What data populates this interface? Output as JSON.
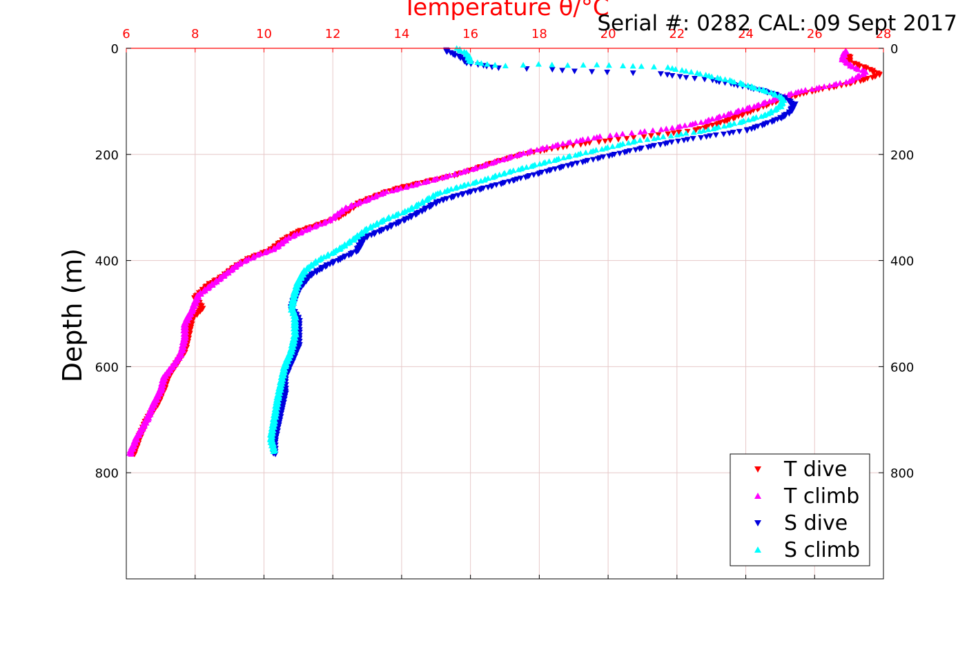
{
  "chart_data": {
    "type": "scatter",
    "title": "Temperature θ/°C",
    "annotation": "Serial #: 0282  CAL: 09 Sept 2017",
    "xlabel": "Temperature θ/°C",
    "ylabel": "Depth (m)",
    "xlim": [
      6,
      28
    ],
    "ylim": [
      0,
      1000
    ],
    "y_reversed": true,
    "grid": true,
    "legend_position": "bottom-right",
    "x_ticks": [
      "6",
      "8",
      "10",
      "12",
      "14",
      "16",
      "18",
      "20",
      "22",
      "24",
      "26",
      "28"
    ],
    "y_ticks": [
      "0",
      "200",
      "400",
      "600",
      "800"
    ],
    "colors": {
      "axis_top": "#ff0000",
      "grid": "#e6c8c8",
      "T dive": "#ff0000",
      "T climb": "#ff00ff",
      "S dive": "#0000dd",
      "S climb": "#00ffff"
    },
    "series": [
      {
        "name": "T dive",
        "marker": "triangle-down",
        "color": "#ff0000",
        "points": [
          [
            27.0,
            15
          ],
          [
            27.0,
            25
          ],
          [
            27.6,
            40
          ],
          [
            27.9,
            50
          ],
          [
            27.4,
            60
          ],
          [
            26.8,
            70
          ],
          [
            26.0,
            80
          ],
          [
            25.6,
            87
          ],
          [
            25.1,
            95
          ],
          [
            24.7,
            105
          ],
          [
            24.1,
            120
          ],
          [
            23.3,
            140
          ],
          [
            22.5,
            155
          ],
          [
            21.5,
            163
          ],
          [
            20.5,
            170
          ],
          [
            19.5,
            178
          ],
          [
            18.5,
            188
          ],
          [
            17.5,
            200
          ],
          [
            16.7,
            215
          ],
          [
            16.0,
            230
          ],
          [
            15.5,
            240
          ],
          [
            14.8,
            250
          ],
          [
            14.0,
            262
          ],
          [
            13.5,
            272
          ],
          [
            12.8,
            290
          ],
          [
            12.2,
            318
          ],
          [
            11.7,
            330
          ],
          [
            11.0,
            345
          ],
          [
            10.6,
            360
          ],
          [
            10.2,
            380
          ],
          [
            9.6,
            395
          ],
          [
            9.2,
            410
          ],
          [
            8.8,
            430
          ],
          [
            8.4,
            445
          ],
          [
            8.0,
            470
          ],
          [
            8.2,
            490
          ],
          [
            7.9,
            510
          ],
          [
            7.8,
            540
          ],
          [
            7.7,
            570
          ],
          [
            7.5,
            590
          ],
          [
            7.2,
            620
          ],
          [
            7.1,
            640
          ],
          [
            6.9,
            670
          ],
          [
            6.6,
            700
          ],
          [
            6.4,
            730
          ],
          [
            6.2,
            765
          ]
        ]
      },
      {
        "name": "T climb",
        "marker": "triangle-up",
        "color": "#ff00ff",
        "points": [
          [
            26.9,
            5
          ],
          [
            26.8,
            20
          ],
          [
            27.1,
            35
          ],
          [
            27.5,
            45
          ],
          [
            27.0,
            62
          ],
          [
            26.3,
            72
          ],
          [
            25.5,
            82
          ],
          [
            24.9,
            95
          ],
          [
            24.3,
            108
          ],
          [
            23.6,
            122
          ],
          [
            22.8,
            138
          ],
          [
            21.9,
            150
          ],
          [
            20.9,
            158
          ],
          [
            19.8,
            166
          ],
          [
            18.8,
            178
          ],
          [
            17.8,
            193
          ],
          [
            16.9,
            210
          ],
          [
            16.2,
            225
          ],
          [
            15.5,
            238
          ],
          [
            14.8,
            250
          ],
          [
            14.1,
            262
          ],
          [
            13.5,
            272
          ],
          [
            12.9,
            288
          ],
          [
            12.4,
            300
          ],
          [
            11.9,
            325
          ],
          [
            11.3,
            340
          ],
          [
            10.7,
            358
          ],
          [
            10.3,
            378
          ],
          [
            9.8,
            390
          ],
          [
            9.3,
            405
          ],
          [
            8.9,
            425
          ],
          [
            8.5,
            445
          ],
          [
            8.1,
            465
          ],
          [
            7.9,
            495
          ],
          [
            7.7,
            520
          ],
          [
            7.7,
            545
          ],
          [
            7.6,
            575
          ],
          [
            7.4,
            595
          ],
          [
            7.1,
            620
          ],
          [
            7.0,
            645
          ],
          [
            6.8,
            670
          ],
          [
            6.6,
            700
          ],
          [
            6.3,
            735
          ],
          [
            6.1,
            765
          ]
        ]
      },
      {
        "name": "S dive",
        "marker": "triangle-down",
        "color": "#0000dd",
        "points": [
          [
            15.3,
            3
          ],
          [
            15.3,
            5
          ],
          [
            15.8,
            20
          ],
          [
            15.9,
            28
          ],
          [
            16.8,
            37
          ],
          [
            18.4,
            40
          ],
          [
            19.0,
            43
          ],
          [
            20.0,
            45
          ],
          [
            21.5,
            48
          ],
          [
            22.3,
            55
          ],
          [
            23.0,
            60
          ],
          [
            23.8,
            70
          ],
          [
            24.5,
            80
          ],
          [
            25.0,
            90
          ],
          [
            25.4,
            105
          ],
          [
            25.3,
            120
          ],
          [
            25.0,
            132
          ],
          [
            24.6,
            142
          ],
          [
            24.0,
            155
          ],
          [
            23.0,
            165
          ],
          [
            22.0,
            175
          ],
          [
            21.0,
            188
          ],
          [
            20.0,
            203
          ],
          [
            19.0,
            218
          ],
          [
            18.2,
            232
          ],
          [
            17.3,
            248
          ],
          [
            16.5,
            262
          ],
          [
            15.8,
            274
          ],
          [
            15.1,
            288
          ],
          [
            14.6,
            306
          ],
          [
            14.2,
            320
          ],
          [
            13.6,
            338
          ],
          [
            12.9,
            358
          ],
          [
            12.7,
            382
          ],
          [
            12.3,
            395
          ],
          [
            11.8,
            410
          ],
          [
            11.3,
            430
          ],
          [
            11.0,
            455
          ],
          [
            10.9,
            470
          ],
          [
            10.8,
            490
          ],
          [
            11.0,
            510
          ],
          [
            11.0,
            535
          ],
          [
            11.0,
            560
          ],
          [
            10.8,
            590
          ],
          [
            10.6,
            620
          ],
          [
            10.6,
            650
          ],
          [
            10.5,
            680
          ],
          [
            10.4,
            710
          ],
          [
            10.3,
            740
          ],
          [
            10.3,
            765
          ]
        ]
      },
      {
        "name": "S climb",
        "marker": "triangle-up",
        "color": "#00ffff",
        "points": [
          [
            15.6,
            0
          ],
          [
            15.9,
            10
          ],
          [
            16.0,
            25
          ],
          [
            16.5,
            30
          ],
          [
            17.0,
            33
          ],
          [
            18.0,
            30
          ],
          [
            18.8,
            32
          ],
          [
            19.7,
            31
          ],
          [
            20.4,
            33
          ],
          [
            21.0,
            34
          ],
          [
            21.7,
            36
          ],
          [
            22.3,
            43
          ],
          [
            22.8,
            50
          ],
          [
            23.3,
            57
          ],
          [
            23.8,
            65
          ],
          [
            24.3,
            75
          ],
          [
            24.8,
            85
          ],
          [
            25.1,
            95
          ],
          [
            25.0,
            110
          ],
          [
            24.6,
            125
          ],
          [
            23.8,
            140
          ],
          [
            22.8,
            155
          ],
          [
            21.8,
            165
          ],
          [
            20.8,
            175
          ],
          [
            19.8,
            190
          ],
          [
            18.9,
            203
          ],
          [
            18.0,
            218
          ],
          [
            17.0,
            235
          ],
          [
            16.3,
            250
          ],
          [
            15.6,
            262
          ],
          [
            15.0,
            275
          ],
          [
            14.6,
            290
          ],
          [
            14.2,
            305
          ],
          [
            13.6,
            320
          ],
          [
            13.0,
            340
          ],
          [
            12.6,
            360
          ],
          [
            12.1,
            382
          ],
          [
            11.6,
            398
          ],
          [
            11.2,
            418
          ],
          [
            11.0,
            440
          ],
          [
            10.9,
            460
          ],
          [
            10.8,
            490
          ],
          [
            10.9,
            505
          ],
          [
            10.9,
            540
          ],
          [
            10.8,
            570
          ],
          [
            10.6,
            600
          ],
          [
            10.5,
            630
          ],
          [
            10.4,
            660
          ],
          [
            10.3,
            700
          ],
          [
            10.2,
            735
          ],
          [
            10.3,
            760
          ]
        ]
      }
    ]
  }
}
